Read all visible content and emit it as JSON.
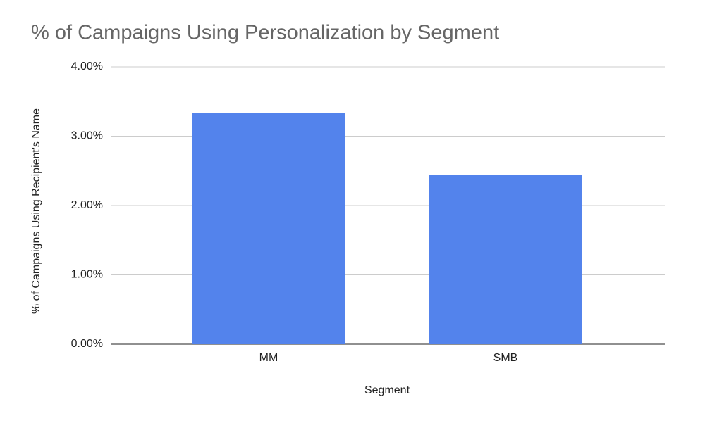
{
  "chart_data": {
    "type": "bar",
    "title": "% of Campaigns Using Personalization by Segment",
    "x_label": "Segment",
    "y_label": "% of Campaigns Using Recipient's Name",
    "categories": [
      "MM",
      "SMB"
    ],
    "values": [
      3.34,
      2.44
    ],
    "color": "#5383ec",
    "ylim": [
      0,
      4
    ],
    "yticks": [
      {
        "value": 0,
        "label": "0.00%"
      },
      {
        "value": 1,
        "label": "1.00%"
      },
      {
        "value": 2,
        "label": "2.00%"
      },
      {
        "value": 3,
        "label": "3.00%"
      },
      {
        "value": 4,
        "label": "4.00%"
      }
    ],
    "grid": true
  }
}
